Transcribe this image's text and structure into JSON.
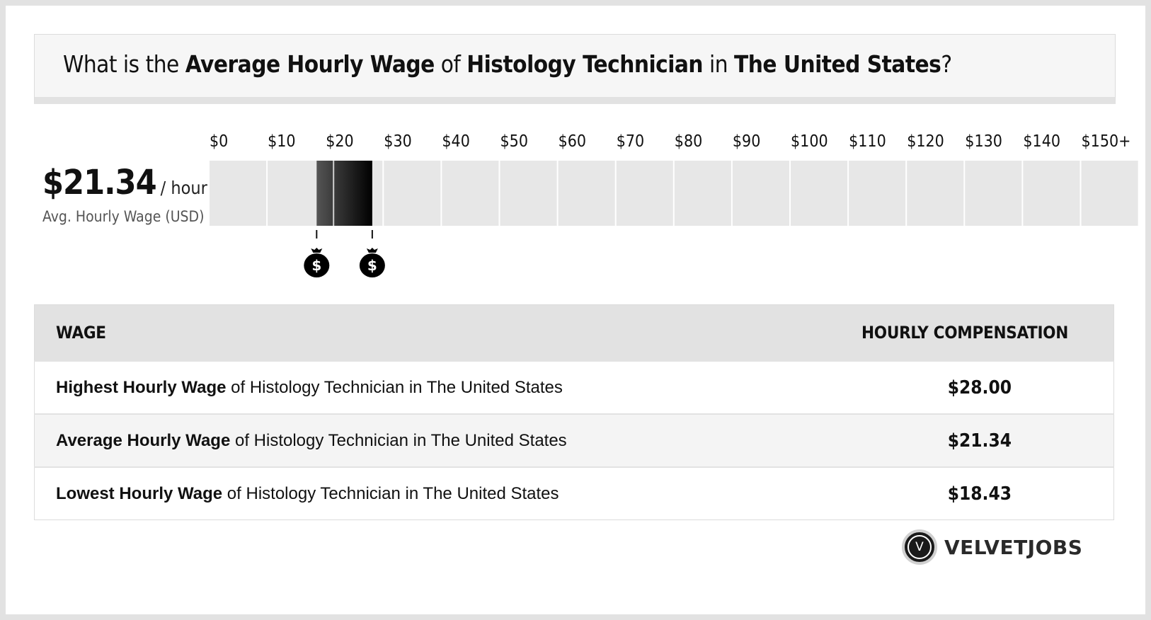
{
  "header": {
    "q1": "What is the ",
    "b1": "Average Hourly Wage",
    "q2": " of ",
    "b2": "Histology Technician",
    "q3": " in ",
    "b3": "The United States",
    "q4": "?"
  },
  "summary": {
    "avg_value": "$21.34",
    "avg_unit": "/ hour",
    "avg_label": "Avg. Hourly Wage (USD)"
  },
  "chart_data": {
    "type": "bar",
    "x_tick_labels": [
      "$0",
      "$10",
      "$20",
      "$30",
      "$40",
      "$50",
      "$60",
      "$70",
      "$80",
      "$90",
      "$100",
      "$110",
      "$120",
      "$130",
      "$140",
      "$150+"
    ],
    "xlim": [
      0,
      150
    ],
    "range_low": 18.43,
    "range_high": 28.0,
    "average": 21.34,
    "marker_icon": "money-bag-icon",
    "colors": {
      "track": "#e7e7e7",
      "range_start": "#555555",
      "range_end": "#000000"
    }
  },
  "table": {
    "header_wage": "WAGE",
    "header_comp": "HOURLY COMPENSATION",
    "rows": [
      {
        "bold": "Highest Hourly Wage",
        "rest": " of Histology Technician in The United States",
        "value": "$28.00"
      },
      {
        "bold": "Average Hourly Wage",
        "rest": " of Histology Technician in The United States",
        "value": "$21.34"
      },
      {
        "bold": "Lowest Hourly Wage",
        "rest": " of Histology Technician in The United States",
        "value": "$18.43"
      }
    ]
  },
  "logo": {
    "text": "VELVETJOBS",
    "mark": "V"
  }
}
